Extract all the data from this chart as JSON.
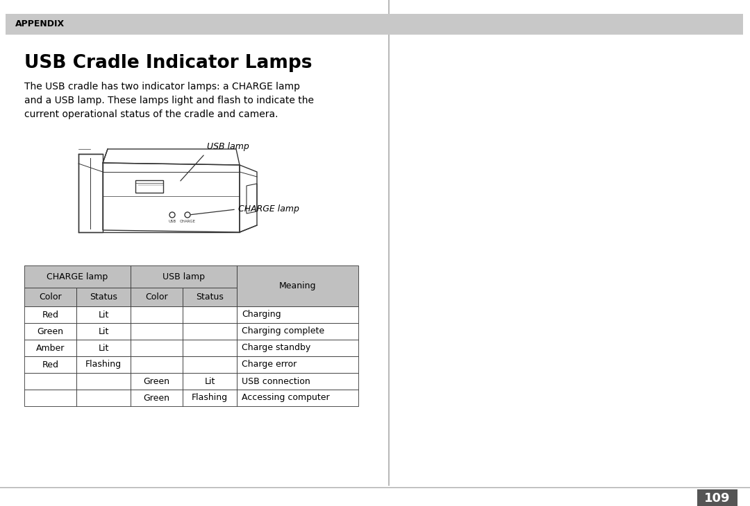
{
  "page_bg": "#ffffff",
  "header_bg": "#c8c8c8",
  "header_text": "APPENDIX",
  "header_text_color": "#000000",
  "title": "USB Cradle Indicator Lamps",
  "body_text": "The USB cradle has two indicator lamps: a CHARGE lamp\nand a USB lamp. These lamps light and flash to indicate the\ncurrent operational status of the cradle and camera.",
  "divider_color": "#aaaaaa",
  "table_header_bg": "#c0c0c0",
  "table_border_color": "#333333",
  "page_number": "109",
  "page_number_bg": "#555555",
  "page_number_color": "#ffffff",
  "bottom_line_color": "#aaaaaa",
  "cradle_color": "#333333"
}
